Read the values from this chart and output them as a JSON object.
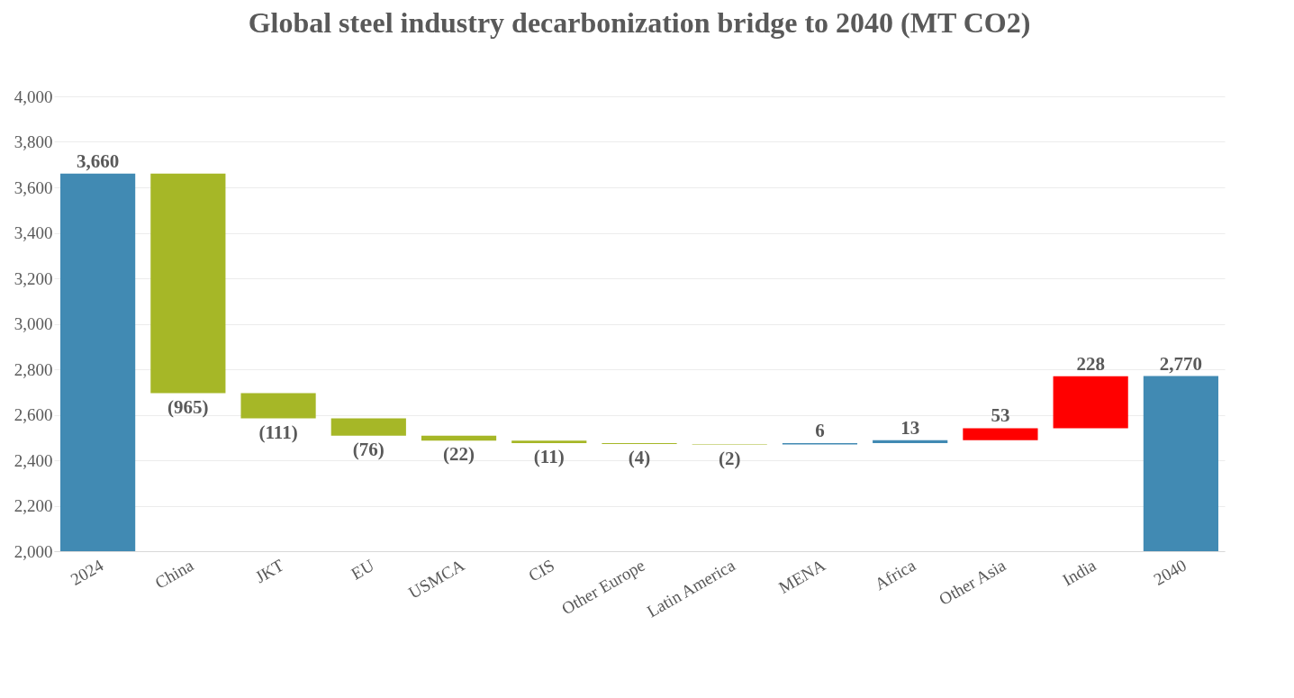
{
  "chart_data": {
    "type": "bar",
    "title": "Global steel industry decarbonization bridge to 2040 (MT CO2)",
    "categories": [
      "2024",
      "China",
      "JKT",
      "EU",
      "USMCA",
      "CIS",
      "Other Europe",
      "Latin America",
      "MENA",
      "Africa",
      "Other Asia",
      "India",
      "2040"
    ],
    "values": [
      3660,
      -965,
      -111,
      -76,
      -22,
      -11,
      -4,
      -2,
      6,
      13,
      53,
      228,
      2770
    ],
    "base": [
      0,
      3660,
      2695,
      2584,
      2508,
      2486,
      2475,
      2471,
      2469,
      2475,
      2488,
      2541,
      0
    ],
    "value_labels": [
      "3,660",
      "(965)",
      "(111)",
      "(76)",
      "(22)",
      "(11)",
      "(4)",
      "(2)",
      "6",
      "13",
      "53",
      "228",
      "2,770"
    ],
    "colors": [
      "#418ab3",
      "#a6b727",
      "#a6b727",
      "#a6b727",
      "#a6b727",
      "#a6b727",
      "#a6b727",
      "#a6b727",
      "#418ab3",
      "#418ab3",
      "#ff0000",
      "#ff0000",
      "#418ab3"
    ],
    "ylim": [
      2000,
      4000
    ],
    "yticks": [
      {
        "value": 2000,
        "label": "2,000"
      },
      {
        "value": 2200,
        "label": "2,200"
      },
      {
        "value": 2400,
        "label": "2,400"
      },
      {
        "value": 2600,
        "label": "2,600"
      },
      {
        "value": 2800,
        "label": "2,800"
      },
      {
        "value": 3000,
        "label": "3,000"
      },
      {
        "value": 3200,
        "label": "3,200"
      },
      {
        "value": 3400,
        "label": "3,400"
      },
      {
        "value": 3600,
        "label": "3,600"
      },
      {
        "value": 3800,
        "label": "3,800"
      },
      {
        "value": 4000,
        "label": "4,000"
      }
    ],
    "grid": "y"
  }
}
